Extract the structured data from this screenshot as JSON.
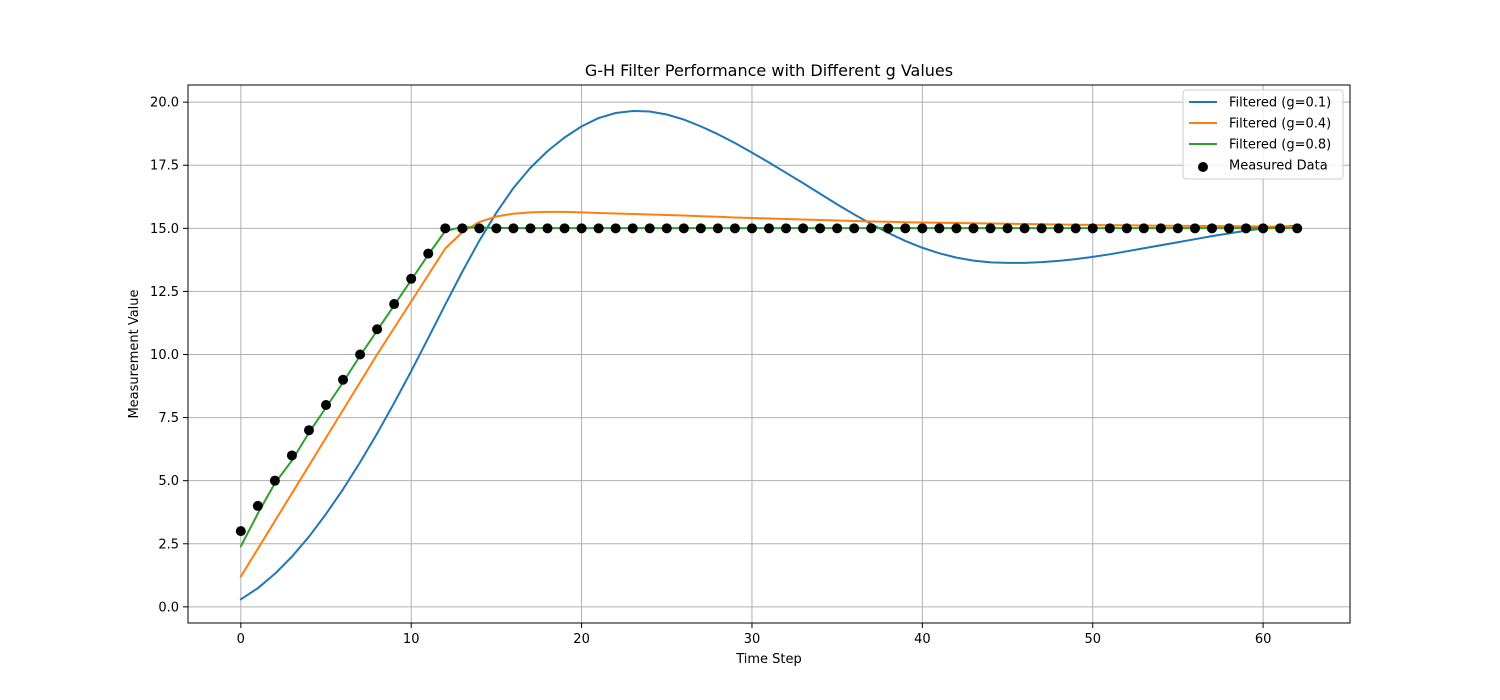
{
  "chart_data": {
    "type": "line",
    "title": "G-H Filter Performance with Different g Values",
    "xlabel": "Time Step",
    "ylabel": "Measurement Value",
    "xlim": [
      -3.1,
      65.1
    ],
    "ylim": [
      -0.64,
      20.68
    ],
    "xticks": [
      0,
      10,
      20,
      30,
      40,
      50,
      60
    ],
    "yticks": [
      0.0,
      2.5,
      5.0,
      7.5,
      10.0,
      12.5,
      15.0,
      17.5,
      20.0
    ],
    "xtick_labels": [
      "0",
      "10",
      "20",
      "30",
      "40",
      "50",
      "60"
    ],
    "ytick_labels": [
      "0.0",
      "2.5",
      "5.0",
      "7.5",
      "10.0",
      "12.5",
      "15.0",
      "17.5",
      "20.0"
    ],
    "grid": true,
    "legend_position": "top-right",
    "x": [
      0,
      1,
      2,
      3,
      4,
      5,
      6,
      7,
      8,
      9,
      10,
      11,
      12,
      13,
      14,
      15,
      16,
      17,
      18,
      19,
      20,
      21,
      22,
      23,
      24,
      25,
      26,
      27,
      28,
      29,
      30,
      31,
      32,
      33,
      34,
      35,
      36,
      37,
      38,
      39,
      40,
      41,
      42,
      43,
      44,
      45,
      46,
      47,
      48,
      49,
      50,
      51,
      52,
      53,
      54,
      55,
      56,
      57,
      58,
      59,
      60,
      61,
      62
    ],
    "series": [
      {
        "name": "Filtered (g=0.1)",
        "kind": "line",
        "color": "#1f77b4",
        "values": [
          0.3,
          0.74,
          1.31,
          1.99,
          2.78,
          3.68,
          4.66,
          5.73,
          6.87,
          8.08,
          9.34,
          10.65,
          11.98,
          13.28,
          14.51,
          15.62,
          16.6,
          17.4,
          18.06,
          18.6,
          19.04,
          19.37,
          19.57,
          19.65,
          19.63,
          19.51,
          19.31,
          19.04,
          18.73,
          18.38,
          18.0,
          17.61,
          17.2,
          16.79,
          16.37,
          15.95,
          15.55,
          15.17,
          14.82,
          14.5,
          14.23,
          14.01,
          13.84,
          13.72,
          13.65,
          13.63,
          13.63,
          13.66,
          13.71,
          13.78,
          13.87,
          13.97,
          14.09,
          14.21,
          14.33,
          14.45,
          14.57,
          14.69,
          14.8,
          14.91,
          15.0,
          15.06,
          15.1
        ]
      },
      {
        "name": "Filtered (g=0.4)",
        "kind": "line",
        "color": "#ff7f0e",
        "values": [
          1.2,
          2.3,
          3.4,
          4.5,
          5.6,
          6.7,
          7.8,
          8.9,
          10.0,
          11.05,
          12.1,
          13.15,
          14.2,
          14.85,
          15.25,
          15.47,
          15.58,
          15.63,
          15.65,
          15.65,
          15.63,
          15.61,
          15.59,
          15.57,
          15.55,
          15.53,
          15.51,
          15.48,
          15.46,
          15.43,
          15.41,
          15.39,
          15.37,
          15.35,
          15.33,
          15.31,
          15.29,
          15.27,
          15.26,
          15.24,
          15.23,
          15.22,
          15.21,
          15.2,
          15.19,
          15.18,
          15.17,
          15.16,
          15.15,
          15.14,
          15.13,
          15.12,
          15.12,
          15.11,
          15.1,
          15.1,
          15.09,
          15.09,
          15.08,
          15.08,
          15.07,
          15.07,
          15.06
        ]
      },
      {
        "name": "Filtered (g=0.8)",
        "kind": "line",
        "color": "#2ca02c",
        "values": [
          2.4,
          3.7,
          4.9,
          5.8,
          6.9,
          7.9,
          8.9,
          9.95,
          10.95,
          11.95,
          12.95,
          13.95,
          14.9,
          15.05,
          15.03,
          15.02,
          15.01,
          15.01,
          15.01,
          15.01,
          15.01,
          15.01,
          15.01,
          15.01,
          15.01,
          15.01,
          15.01,
          15.01,
          15.01,
          15.01,
          15.01,
          15.01,
          15.01,
          15.01,
          15.01,
          15.01,
          15.01,
          15.01,
          15.01,
          15.01,
          15.01,
          15.01,
          15.01,
          15.01,
          15.01,
          15.01,
          15.01,
          15.01,
          15.01,
          15.01,
          15.01,
          15.01,
          15.01,
          15.01,
          15.01,
          15.01,
          15.01,
          15.01,
          15.01,
          15.01,
          15.01,
          15.01,
          15.01
        ]
      },
      {
        "name": "Measured Data",
        "kind": "scatter",
        "color": "#000000",
        "values": [
          3,
          4,
          5,
          6,
          7,
          8,
          9,
          10,
          11,
          12,
          13,
          14,
          15,
          15,
          15,
          15,
          15,
          15,
          15,
          15,
          15,
          15,
          15,
          15,
          15,
          15,
          15,
          15,
          15,
          15,
          15,
          15,
          15,
          15,
          15,
          15,
          15,
          15,
          15,
          15,
          15,
          15,
          15,
          15,
          15,
          15,
          15,
          15,
          15,
          15,
          15,
          15,
          15,
          15,
          15,
          15,
          15,
          15,
          15,
          15,
          15,
          15,
          15
        ]
      }
    ]
  }
}
